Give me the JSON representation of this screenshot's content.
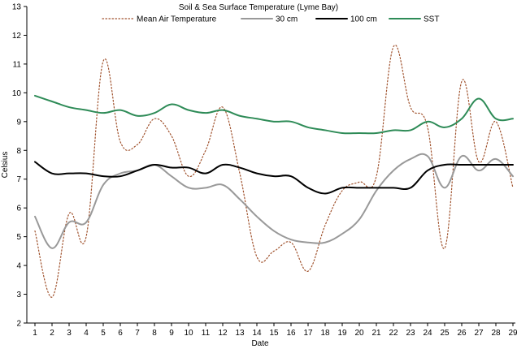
{
  "chart_data": {
    "type": "line",
    "title": "Soil & Sea Surface Temperature (Lyme Bay)",
    "xlabel": "Date",
    "ylabel": "Celsius",
    "ylim": [
      2,
      13
    ],
    "yticks": [
      2,
      3,
      4,
      5,
      6,
      7,
      8,
      9,
      10,
      11,
      12,
      13
    ],
    "xlim": [
      1,
      29
    ],
    "x": [
      1,
      2,
      3,
      4,
      5,
      6,
      7,
      8,
      9,
      10,
      11,
      12,
      13,
      14,
      15,
      16,
      17,
      18,
      19,
      20,
      21,
      22,
      23,
      24,
      25,
      26,
      27,
      28,
      29
    ],
    "grid": false,
    "legend_position": "top",
    "series": [
      {
        "name": "Mean Air Temperature",
        "color": "#a0522d",
        "style": "dotted",
        "values": [
          5.2,
          2.9,
          5.8,
          5.0,
          11.1,
          8.3,
          8.2,
          9.1,
          8.5,
          7.1,
          8.0,
          9.5,
          7.2,
          4.3,
          4.5,
          4.8,
          3.8,
          5.4,
          6.6,
          6.9,
          7.1,
          11.6,
          9.5,
          8.8,
          4.6,
          10.4,
          7.6,
          9.0,
          6.7
        ]
      },
      {
        "name": "30 cm",
        "color": "#999999",
        "style": "solid",
        "values": [
          5.7,
          4.6,
          5.5,
          5.5,
          6.8,
          7.2,
          7.3,
          7.5,
          7.1,
          6.7,
          6.7,
          6.8,
          6.3,
          5.7,
          5.2,
          4.9,
          4.8,
          4.8,
          5.1,
          5.6,
          6.6,
          7.3,
          7.7,
          7.8,
          6.7,
          7.8,
          7.3,
          7.7,
          7.1
        ]
      },
      {
        "name": "100 cm",
        "color": "#000000",
        "style": "solid",
        "values": [
          7.6,
          7.2,
          7.2,
          7.2,
          7.1,
          7.1,
          7.3,
          7.5,
          7.4,
          7.4,
          7.2,
          7.5,
          7.4,
          7.2,
          7.1,
          7.1,
          6.7,
          6.5,
          6.7,
          6.7,
          6.7,
          6.7,
          6.7,
          7.3,
          7.5,
          7.5,
          7.5,
          7.5,
          7.5
        ]
      },
      {
        "name": "SST",
        "color": "#2e8b57",
        "style": "solid",
        "values": [
          9.9,
          9.7,
          9.5,
          9.4,
          9.3,
          9.4,
          9.2,
          9.3,
          9.6,
          9.4,
          9.3,
          9.4,
          9.2,
          9.1,
          9.0,
          9.0,
          8.8,
          8.7,
          8.6,
          8.6,
          8.6,
          8.7,
          8.7,
          9.0,
          8.8,
          9.1,
          9.8,
          9.1,
          9.1
        ]
      }
    ]
  }
}
